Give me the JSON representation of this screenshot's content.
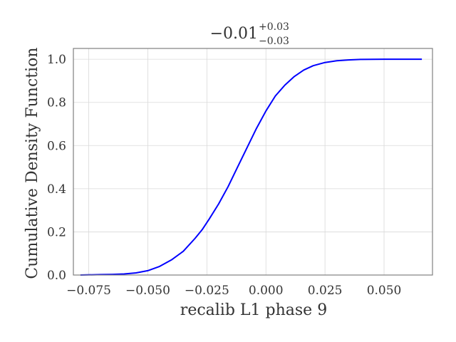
{
  "chart_data": {
    "type": "line",
    "title": {
      "main": "−0.01",
      "sup": "+0.03",
      "sub": "−0.03"
    },
    "xlabel": "recalib L1 phase 9",
    "ylabel": "Cumulative Density Function",
    "xlim": [
      -0.0815,
      0.0705
    ],
    "ylim": [
      0.0,
      1.05
    ],
    "xticks": [
      -0.075,
      -0.05,
      -0.025,
      0.0,
      0.025,
      0.05
    ],
    "xtick_labels": [
      "−0.075",
      "−0.050",
      "−0.025",
      "0.000",
      "0.025",
      "0.050"
    ],
    "yticks": [
      0.0,
      0.2,
      0.4,
      0.6,
      0.8,
      1.0
    ],
    "ytick_labels": [
      "0.0",
      "0.2",
      "0.4",
      "0.6",
      "0.8",
      "1.0"
    ],
    "grid": true,
    "colors": {
      "line": "#0000ff",
      "grid": "#d9d9d9",
      "frame": "#808080"
    },
    "series": [
      {
        "x": [
          -0.0785,
          -0.07,
          -0.065,
          -0.06,
          -0.055,
          -0.05,
          -0.045,
          -0.04,
          -0.035,
          -0.03,
          -0.027,
          -0.024,
          -0.02,
          -0.016,
          -0.012,
          -0.008,
          -0.004,
          0.0,
          0.004,
          0.008,
          0.012,
          0.016,
          0.02,
          0.025,
          0.03,
          0.035,
          0.04,
          0.05,
          0.066
        ],
        "y": [
          0.0,
          0.002,
          0.003,
          0.005,
          0.01,
          0.02,
          0.04,
          0.07,
          0.11,
          0.17,
          0.21,
          0.26,
          0.33,
          0.41,
          0.5,
          0.59,
          0.68,
          0.76,
          0.83,
          0.88,
          0.92,
          0.95,
          0.97,
          0.985,
          0.993,
          0.997,
          0.999,
          1.0,
          1.0
        ]
      }
    ]
  }
}
